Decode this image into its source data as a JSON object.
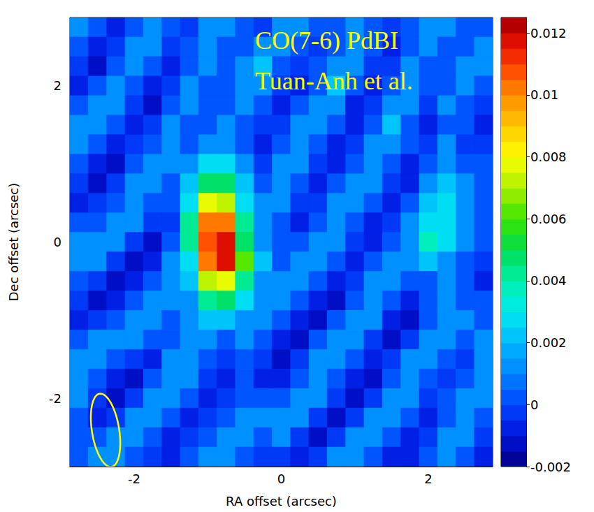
{
  "chart_data": {
    "type": "heatmap",
    "x_label": "RA offset (arcsec)",
    "y_label": "Dec offset (arcsec)",
    "annotations": [
      "CO(7-6) PdBI",
      "Tuan-Anh et al."
    ],
    "xlim": [
      -2.875,
      2.875
    ],
    "ylim": [
      -2.875,
      2.875
    ],
    "xticks": [
      -2,
      0,
      2
    ],
    "yticks": [
      -2,
      0,
      2
    ],
    "grid": false,
    "x": [
      -2.75,
      -2.5,
      -2.25,
      -2,
      -1.75,
      -1.5,
      -1.25,
      -1,
      -0.75,
      -0.5,
      -0.25,
      0,
      0.25,
      0.5,
      0.75,
      1,
      1.25,
      1.5,
      1.75,
      2,
      2.25,
      2.5,
      2.75
    ],
    "y": [
      2.75,
      2.5,
      2.25,
      2,
      1.75,
      1.5,
      1.25,
      1,
      0.75,
      0.5,
      0.25,
      0,
      -0.25,
      -0.5,
      -0.75,
      -1,
      -1.25,
      -1.5,
      -1.75,
      -2,
      -2.25,
      -2.5,
      -2.75
    ],
    "z": [
      [
        0.001,
        0.0,
        -0.001,
        0.0005,
        0.0015,
        0.0,
        -0.0005,
        0.001,
        0.0015,
        0.0005,
        -0.0005,
        0.001,
        0.0015,
        0.0005,
        0.0,
        0.001,
        0.0005,
        -0.0005,
        0.0005,
        0.0015,
        0.001,
        0.0,
        0.0005
      ],
      [
        0.0005,
        -0.001,
        -0.0005,
        0.001,
        0.001,
        -0.0005,
        0.0,
        0.0015,
        0.0005,
        0.0,
        0.001,
        0.0015,
        0.0005,
        -0.0005,
        0.0005,
        0.0015,
        0.0,
        -0.001,
        0.0,
        0.001,
        0.0005,
        0.0005,
        0.0015
      ],
      [
        -0.0005,
        -0.0015,
        0.0005,
        0.0015,
        0.0,
        -0.001,
        0.0005,
        0.001,
        0.0,
        0.001,
        0.002,
        0.0005,
        -0.0005,
        0.0,
        0.0015,
        0.001,
        -0.0005,
        -0.0005,
        0.001,
        0.0005,
        0.0,
        0.0015,
        0.001
      ],
      [
        -0.001,
        0.0,
        0.0015,
        0.0005,
        -0.001,
        -0.0005,
        0.001,
        0.0005,
        0.0,
        0.0015,
        0.001,
        -0.0005,
        -0.001,
        0.0005,
        0.002,
        0.0,
        -0.001,
        0.0005,
        0.0015,
        0.0,
        0.0005,
        0.001,
        0.0
      ],
      [
        0.0,
        0.001,
        0.001,
        -0.0005,
        -0.0015,
        0.0,
        0.001,
        0.0,
        0.0005,
        0.001,
        0.0,
        -0.001,
        0.0,
        0.0015,
        0.001,
        -0.001,
        -0.0005,
        0.0015,
        0.001,
        -0.0005,
        0.001,
        0.0005,
        -0.0005
      ],
      [
        0.001,
        0.0015,
        0.0,
        -0.001,
        -0.0005,
        0.001,
        0.0005,
        0.0005,
        0.001,
        0.0005,
        -0.0005,
        -0.0005,
        0.001,
        0.0015,
        0.0,
        -0.001,
        0.0005,
        0.002,
        0.0005,
        -0.001,
        0.0005,
        0.0,
        -0.001
      ],
      [
        0.0015,
        0.0005,
        -0.001,
        -0.0005,
        0.0005,
        0.0015,
        0.0,
        0.0015,
        0.0015,
        0.0,
        -0.001,
        0.0005,
        0.0015,
        0.0005,
        -0.001,
        -0.0005,
        0.001,
        0.0015,
        0.0,
        -0.0005,
        0.001,
        -0.0005,
        -0.0005
      ],
      [
        0.0005,
        -0.001,
        -0.0015,
        0.0005,
        0.0015,
        0.001,
        0.001,
        0.003,
        0.003,
        0.001,
        -0.0005,
        0.001,
        0.001,
        -0.0005,
        -0.001,
        0.0005,
        0.0015,
        0.0005,
        -0.001,
        0.0,
        0.0015,
        0.0,
        0.0005
      ],
      [
        -0.0005,
        -0.0015,
        -0.0005,
        0.001,
        0.001,
        0.0005,
        0.002,
        0.005,
        0.005,
        0.002,
        0.0,
        0.0015,
        0.0,
        -0.001,
        0.0,
        0.0015,
        0.001,
        -0.0005,
        -0.001,
        0.001,
        0.002,
        0.001,
        0.0
      ],
      [
        -0.001,
        -0.0005,
        0.0005,
        0.0015,
        0.0005,
        0.0,
        0.003,
        0.008,
        0.007,
        0.003,
        0.001,
        0.001,
        -0.0005,
        -0.0005,
        0.001,
        0.0015,
        0.0,
        -0.001,
        0.0,
        0.002,
        0.0025,
        0.0015,
        0.0005
      ],
      [
        0.0,
        0.0005,
        0.0015,
        0.001,
        -0.0005,
        -0.0005,
        0.004,
        0.01,
        0.01,
        0.004,
        0.0015,
        0.0005,
        -0.001,
        0.0005,
        0.0015,
        0.0005,
        -0.001,
        -0.0005,
        0.001,
        0.003,
        0.003,
        0.0015,
        0.0005
      ],
      [
        0.001,
        0.0015,
        0.001,
        -0.0005,
        -0.0015,
        0.0,
        0.004,
        0.011,
        0.012,
        0.005,
        0.0015,
        0.0,
        0.0,
        0.0015,
        0.001,
        -0.0005,
        -0.001,
        0.0005,
        0.0015,
        0.0035,
        0.0025,
        0.001,
        0.0
      ],
      [
        0.0015,
        0.001,
        -0.0005,
        -0.0015,
        -0.001,
        0.001,
        0.003,
        0.01,
        0.0115,
        0.006,
        0.002,
        0.0005,
        0.001,
        0.0015,
        0.0,
        -0.001,
        0.0,
        0.0015,
        0.001,
        0.002,
        0.0015,
        0.0005,
        -0.0005
      ],
      [
        0.0005,
        -0.0005,
        -0.0015,
        -0.001,
        0.0005,
        0.0015,
        0.002,
        0.007,
        0.008,
        0.004,
        0.0015,
        0.001,
        0.0015,
        0.0005,
        -0.001,
        -0.0005,
        0.001,
        0.0015,
        0.0,
        0.0005,
        0.001,
        0.0,
        -0.001
      ],
      [
        -0.0005,
        -0.0015,
        -0.001,
        0.0005,
        0.0015,
        0.001,
        0.0015,
        0.004,
        0.005,
        0.003,
        0.001,
        0.0015,
        0.0005,
        -0.001,
        -0.0015,
        0.0,
        0.0015,
        0.0005,
        -0.001,
        0.0,
        0.001,
        0.0005,
        0.0
      ],
      [
        -0.001,
        -0.0005,
        0.0005,
        0.0015,
        0.001,
        0.0005,
        0.001,
        0.002,
        0.002,
        0.0015,
        0.001,
        0.0,
        -0.001,
        -0.0015,
        0.0,
        0.0015,
        0.001,
        -0.001,
        -0.0015,
        0.0005,
        0.0015,
        0.001,
        0.0005
      ],
      [
        0.0,
        0.001,
        0.0015,
        0.001,
        0.0,
        0.0005,
        0.0015,
        0.001,
        0.0005,
        0.001,
        0.0005,
        -0.001,
        -0.0015,
        0.0,
        0.001,
        0.001,
        -0.0005,
        -0.0015,
        -0.0005,
        0.001,
        0.001,
        0.0,
        0.001
      ],
      [
        0.001,
        0.0015,
        0.0005,
        -0.0005,
        -0.001,
        0.001,
        0.0015,
        0.0005,
        -0.0005,
        0.0005,
        -0.0005,
        -0.0015,
        -0.0005,
        0.001,
        0.0015,
        0.0,
        -0.001,
        -0.0005,
        0.001,
        0.0015,
        0.0005,
        -0.0005,
        0.001
      ],
      [
        0.0015,
        0.0005,
        -0.001,
        -0.0015,
        0.0,
        0.0015,
        0.001,
        -0.0005,
        -0.001,
        0.0,
        -0.001,
        -0.001,
        0.0005,
        0.0015,
        0.0005,
        -0.001,
        -0.0015,
        0.0005,
        0.0015,
        0.0005,
        -0.0005,
        0.0005,
        0.0015
      ],
      [
        0.001,
        -0.0005,
        -0.0015,
        -0.0005,
        0.001,
        0.001,
        0.0,
        -0.001,
        -0.0005,
        0.0005,
        0.0,
        0.0005,
        0.0015,
        0.001,
        -0.0005,
        -0.0015,
        -0.0005,
        0.0015,
        0.001,
        -0.0005,
        0.0,
        0.0015,
        0.001
      ],
      [
        0.0005,
        -0.001,
        -0.0005,
        0.001,
        0.0015,
        0.0,
        -0.001,
        -0.0005,
        0.0005,
        0.001,
        0.001,
        0.0015,
        0.001,
        -0.0005,
        -0.0015,
        -0.0005,
        0.001,
        0.0015,
        0.0,
        -0.001,
        0.0005,
        0.0015,
        0.0
      ],
      [
        0.0,
        0.0005,
        0.001,
        0.0015,
        0.0005,
        -0.001,
        -0.0005,
        0.0005,
        0.0015,
        0.0015,
        0.0005,
        0.001,
        -0.0005,
        -0.0015,
        -0.0005,
        0.001,
        0.0015,
        0.0005,
        -0.001,
        -0.0005,
        0.001,
        0.001,
        -0.0005
      ],
      [
        0.0005,
        0.0015,
        0.0015,
        0.0005,
        -0.0005,
        -0.001,
        0.0005,
        0.0015,
        0.001,
        0.0005,
        -0.0005,
        -0.0005,
        -0.001,
        -0.0005,
        0.001,
        0.0015,
        0.0005,
        -0.001,
        -0.001,
        0.0005,
        0.0015,
        0.0,
        -0.001
      ]
    ],
    "colorbar": {
      "range": [
        -0.002,
        0.0125
      ],
      "ticks": [
        -0.002,
        0,
        0.002,
        0.004,
        0.006,
        0.008,
        0.01,
        0.012
      ]
    },
    "beam": {
      "x": -2.39,
      "y": -2.41,
      "width": 0.37,
      "height": 0.95,
      "angle": 10
    }
  }
}
